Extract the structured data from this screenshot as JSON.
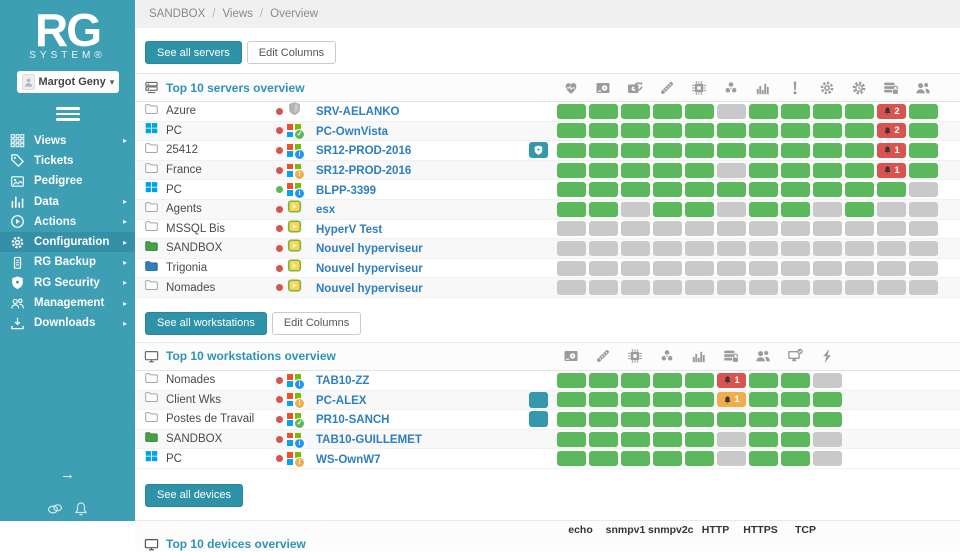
{
  "colors": {
    "sidebar_teal": "#3e9fb4",
    "button_teal": "#2e93a8",
    "link_blue": "#2d7fc0",
    "title_teal": "#2e93b5",
    "cell_green": "#5cb85c",
    "cell_gray": "#c9c9c9",
    "alert_red": "#d9534f",
    "alert_orange": "#f0ad4e"
  },
  "sidebar": {
    "logo_title": "RG",
    "logo_subtitle": "System®",
    "user": {
      "name": "Margot Geny"
    },
    "items": [
      {
        "label": "Views",
        "sym": "grid",
        "icon_name": "grid-icon",
        "chevron": true,
        "active": false
      },
      {
        "label": "Tickets",
        "sym": "tag",
        "icon_name": "tag-icon",
        "chevron": false,
        "active": false
      },
      {
        "label": "Pedigree",
        "sym": "image",
        "icon_name": "image-icon",
        "chevron": false,
        "active": false
      },
      {
        "label": "Data",
        "sym": "chart",
        "icon_name": "bar-chart-icon",
        "chevron": true,
        "active": false
      },
      {
        "label": "Actions",
        "sym": "play",
        "icon_name": "play-circle-icon",
        "chevron": true,
        "active": false
      },
      {
        "label": "Configuration",
        "sym": "gear",
        "icon_name": "gear-icon",
        "chevron": true,
        "active": true
      },
      {
        "label": "RG Backup",
        "sym": "battery",
        "icon_name": "backup-icon",
        "chevron": true,
        "active": false
      },
      {
        "label": "RG Security",
        "sym": "shield",
        "icon_name": "shield-icon",
        "chevron": true,
        "active": false
      },
      {
        "label": "Management",
        "sym": "people",
        "icon_name": "users-icon",
        "chevron": true,
        "active": false
      },
      {
        "label": "Downloads",
        "sym": "download",
        "icon_name": "download-icon",
        "chevron": true,
        "active": false
      }
    ]
  },
  "breadcrumb": [
    "SANDBOX",
    "Views",
    "Overview"
  ],
  "servers": {
    "see_all_label": "See all servers",
    "edit_columns_label": "Edit Columns",
    "title": "Top 10 servers overview",
    "columns": [
      "health",
      "disk",
      "disk-sync",
      "memory",
      "cpu",
      "antivirus",
      "performance",
      "alerts",
      "services",
      "scheduler",
      "backup",
      "sessions"
    ],
    "rows": [
      {
        "group": "Azure",
        "group_icon": "folder",
        "dot": "red",
        "os": "shield",
        "name": "SRV-AELANKO",
        "badge": null,
        "cells": [
          "g",
          "g",
          "g",
          "g",
          "g",
          "x",
          "g",
          "g",
          "g",
          "g",
          "r:2",
          "g"
        ]
      },
      {
        "group": "PC",
        "group_icon": "windows",
        "dot": "red",
        "os": "win-ok",
        "name": "PC-OwnVista",
        "badge": null,
        "cells": [
          "g",
          "g",
          "g",
          "g",
          "g",
          "g",
          "g",
          "g",
          "g",
          "g",
          "r:2",
          "g"
        ]
      },
      {
        "group": "25412",
        "group_icon": "folder",
        "dot": "red",
        "os": "win-info",
        "name": "SR12-PROD-2016",
        "badge": "shield",
        "cells": [
          "g",
          "g",
          "g",
          "g",
          "g",
          "g",
          "g",
          "g",
          "g",
          "g",
          "r:1",
          "g"
        ]
      },
      {
        "group": "France",
        "group_icon": "folder",
        "dot": "red",
        "os": "win-warn",
        "name": "SR12-PROD-2016",
        "badge": null,
        "cells": [
          "g",
          "g",
          "g",
          "g",
          "g",
          "x",
          "g",
          "g",
          "g",
          "g",
          "r:1",
          "g"
        ]
      },
      {
        "group": "PC",
        "group_icon": "windows",
        "dot": "green",
        "os": "win-info",
        "name": "BLPP-3399",
        "badge": null,
        "cells": [
          "g",
          "g",
          "g",
          "g",
          "g",
          "g",
          "g",
          "g",
          "g",
          "g",
          "g",
          "x"
        ]
      },
      {
        "group": "Agents",
        "group_icon": "folder",
        "dot": "red",
        "os": "vm",
        "name": "esx",
        "badge": null,
        "cells": [
          "g",
          "g",
          "x",
          "g",
          "g",
          "x",
          "g",
          "g",
          "x",
          "g",
          "x",
          "x"
        ]
      },
      {
        "group": "MSSQL Bis",
        "group_icon": "folder",
        "dot": "red",
        "os": "vm",
        "name": "HyperV Test",
        "badge": null,
        "cells": [
          "x",
          "x",
          "x",
          "x",
          "x",
          "x",
          "x",
          "x",
          "x",
          "x",
          "x",
          "x"
        ]
      },
      {
        "group": "SANDBOX",
        "group_icon": "folder-green",
        "dot": "red",
        "os": "vm",
        "name": "Nouvel hyperviseur",
        "badge": null,
        "cells": [
          "x",
          "x",
          "x",
          "x",
          "x",
          "x",
          "x",
          "x",
          "x",
          "x",
          "x",
          "x"
        ]
      },
      {
        "group": "Trigonia",
        "group_icon": "folder-blue",
        "dot": "red",
        "os": "vm",
        "name": "Nouvel hyperviseur",
        "badge": null,
        "cells": [
          "x",
          "x",
          "x",
          "x",
          "x",
          "x",
          "x",
          "x",
          "x",
          "x",
          "x",
          "x"
        ]
      },
      {
        "group": "Nomades",
        "group_icon": "folder",
        "dot": "red",
        "os": "vm",
        "name": "Nouvel hyperviseur",
        "badge": null,
        "cells": [
          "x",
          "x",
          "x",
          "x",
          "x",
          "x",
          "x",
          "x",
          "x",
          "x",
          "x",
          "x"
        ]
      }
    ]
  },
  "workstations": {
    "see_all_label": "See all workstations",
    "edit_columns_label": "Edit Columns",
    "title": "Top 10 workstations overview",
    "columns": [
      "disk",
      "memory",
      "cpu",
      "antivirus",
      "performance",
      "backup",
      "sessions",
      "remote",
      "power"
    ],
    "rows": [
      {
        "group": "Nomades",
        "group_icon": "folder",
        "dot": "red",
        "os": "win-info",
        "name": "TAB10-ZZ",
        "badge": null,
        "cells": [
          "g",
          "g",
          "g",
          "g",
          "g",
          "r:1",
          "g",
          "g",
          "x"
        ]
      },
      {
        "group": "Client Wks",
        "group_icon": "folder",
        "dot": "red",
        "os": "win-warn",
        "name": "PC-ALEX",
        "badge": "backup",
        "cells": [
          "g",
          "g",
          "g",
          "g",
          "g",
          "o:1",
          "g",
          "g",
          "g"
        ]
      },
      {
        "group": "Postes de Travail",
        "group_icon": "folder",
        "dot": "red",
        "os": "win-ok",
        "name": "PR10-SANCH",
        "badge": "backup",
        "cells": [
          "g",
          "g",
          "g",
          "g",
          "g",
          "g",
          "g",
          "g",
          "g"
        ]
      },
      {
        "group": "SANDBOX",
        "group_icon": "folder-green",
        "dot": "red",
        "os": "win-info",
        "name": "TAB10-GUILLEMET",
        "badge": null,
        "cells": [
          "g",
          "g",
          "g",
          "g",
          "g",
          "x",
          "g",
          "g",
          "x"
        ]
      },
      {
        "group": "PC",
        "group_icon": "windows",
        "dot": "red",
        "os": "win-warn",
        "name": "WS-OwnW7",
        "badge": null,
        "cells": [
          "g",
          "g",
          "g",
          "g",
          "g",
          "x",
          "g",
          "g",
          "x"
        ]
      }
    ]
  },
  "devices": {
    "see_all_label": "See all devices",
    "title": "Top 10 devices overview",
    "columns": [
      "echo",
      "snmpv1",
      "snmpv2c",
      "HTTP",
      "HTTPS",
      "TCP"
    ]
  }
}
